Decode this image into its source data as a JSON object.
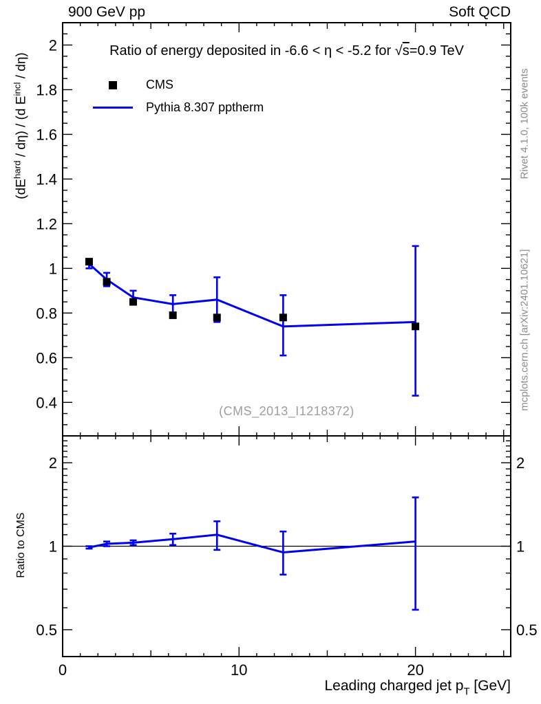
{
  "header": {
    "left": "900 GeV pp",
    "right": "Soft QCD"
  },
  "plot_title": {
    "pre": "Ratio of energy deposited in -6.6 < η < -5.2 for ",
    "sqrt": "√",
    "s": "s",
    "post": "=0.9 TeV"
  },
  "legend": {
    "items": [
      {
        "label": "CMS",
        "marker": "filled-square",
        "color": "#000000"
      },
      {
        "label": "Pythia 8.307 pptherm",
        "marker": "line",
        "color": "#0000f0"
      }
    ]
  },
  "watermark": "(CMS_2013_I1218372)",
  "side_notes": {
    "top": "Rivet 4.1.0,  100k events",
    "bottom": "mcplots.cern.ch [arXiv:2401.10621]"
  },
  "axes": {
    "y_main_parts": {
      "p0": "(dE",
      "sup1": "hard",
      "p1": " / dη) / (d E",
      "sup2": "incl",
      "p2": " / dη)"
    },
    "y_label_ratio": "Ratio to CMS",
    "x_label": {
      "pre": "Leading charged jet p",
      "sub": "T",
      "post": " [GeV]"
    }
  },
  "colors": {
    "mc_line": "#0000f0",
    "data_marker": "#000000",
    "frame": "#000000",
    "gray_text": "#8c8c8c"
  },
  "chart_data": {
    "type": "line",
    "title": "Ratio of energy deposited in -6.6 < η < -5.2 for √s=0.9 TeV",
    "xlabel": "Leading charged jet pT [GeV]",
    "x_range": [
      0,
      25.4
    ],
    "x_ticks": [
      {
        "v": 0,
        "label": "0"
      },
      {
        "v": 10,
        "label": "10"
      },
      {
        "v": 20,
        "label": "20"
      }
    ],
    "x": [
      1.5,
      2.5,
      4,
      6.25,
      8.75,
      12.5,
      20
    ],
    "panels": {
      "main": {
        "ylabel": "(dE^hard / dη) / (d E^incl / dη)",
        "yscale": "linear",
        "y_range": [
          0.25,
          2.1
        ],
        "y_ticks": [
          {
            "v": 0.4,
            "label": "0.4"
          },
          {
            "v": 0.6,
            "label": "0.6"
          },
          {
            "v": 0.8,
            "label": "0.8"
          },
          {
            "v": 1.0,
            "label": "1"
          },
          {
            "v": 1.2,
            "label": "1.2"
          },
          {
            "v": 1.4,
            "label": "1.4"
          },
          {
            "v": 1.6,
            "label": "1.6"
          },
          {
            "v": 1.8,
            "label": "1.8"
          },
          {
            "v": 2.0,
            "label": "2"
          }
        ],
        "series": [
          {
            "name": "CMS",
            "style": "points",
            "marker": "filled-square",
            "color": "#000000",
            "y": [
              1.03,
              0.94,
              0.85,
              0.79,
              0.78,
              0.78,
              0.74
            ]
          },
          {
            "name": "Pythia 8.307 pptherm",
            "style": "line-errorbars",
            "color": "#0000f0",
            "y": [
              1.02,
              0.95,
              0.87,
              0.84,
              0.86,
              0.74,
              0.76
            ],
            "y_lo": [
              1.0,
              0.92,
              0.84,
              0.79,
              0.76,
              0.61,
              0.43
            ],
            "y_hi": [
              1.03,
              0.98,
              0.9,
              0.88,
              0.96,
              0.88,
              1.1
            ]
          }
        ]
      },
      "ratio": {
        "ylabel": "Ratio to CMS",
        "yscale": "log",
        "y_range": [
          0.4,
          2.5
        ],
        "y_ticks": [
          {
            "v": 0.5,
            "label": "0.5"
          },
          {
            "v": 1,
            "label": "1"
          },
          {
            "v": 2,
            "label": "2"
          }
        ],
        "reference_line": 1,
        "series": [
          {
            "name": "Pythia 8.307 pptherm / CMS",
            "style": "line-errorbars",
            "color": "#0000f0",
            "y": [
              0.99,
              1.02,
              1.03,
              1.06,
              1.1,
              0.95,
              1.04
            ],
            "y_lo": [
              0.98,
              1.0,
              1.01,
              1.01,
              0.97,
              0.79,
              0.59
            ],
            "y_hi": [
              1.0,
              1.04,
              1.05,
              1.11,
              1.23,
              1.13,
              1.5
            ]
          }
        ]
      }
    }
  }
}
